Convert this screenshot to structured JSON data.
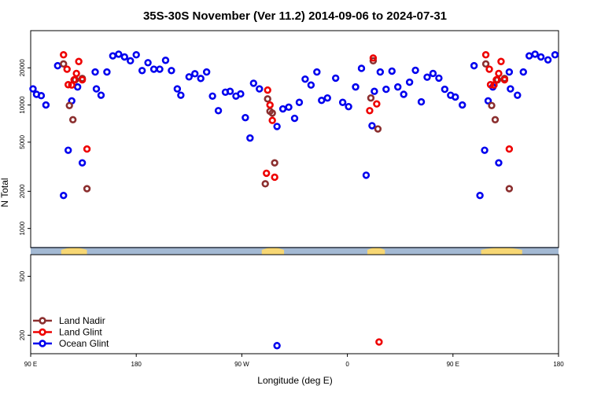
{
  "chart_data": {
    "type": "scatter",
    "title": "35S-30S November (Ver 11.2)   2014-09-06 to 2024-07-31",
    "xlabel": "Longitude (deg E)",
    "ylabel": "N Total",
    "x_scale": "longitude from 90 E through 180 to 180 E (wraps 450 deg)",
    "y_scale": "log",
    "xlim": [
      90,
      540
    ],
    "x_ticks": [
      {
        "value": 90,
        "label": "90 E"
      },
      {
        "value": 180,
        "label": "180"
      },
      {
        "value": 270,
        "label": "90 W"
      },
      {
        "value": 360,
        "label": "0"
      },
      {
        "value": 450,
        "label": "90 E"
      },
      {
        "value": 540,
        "label": "180"
      }
    ],
    "upper_panel": {
      "ylim": [
        700,
        40000
      ],
      "y_ticks": [
        1000,
        2000,
        5000,
        10000,
        20000
      ]
    },
    "lower_panel": {
      "ylim": [
        150,
        700
      ],
      "y_ticks": [
        200,
        500
      ]
    },
    "land_strip": {
      "ocean_color": "#a3b9d3",
      "land_color": "#f7d774",
      "land_spans": [
        [
          116,
          138
        ],
        [
          287,
          306
        ],
        [
          377,
          392
        ],
        [
          474,
          509
        ]
      ]
    },
    "legend": {
      "position": "bottom-left",
      "entries": [
        {
          "name": "Land Nadir",
          "color": "#8b2f2f"
        },
        {
          "name": "Land Glint",
          "color": "#ee0000"
        },
        {
          "name": "Ocean Glint",
          "color": "#0000ee"
        }
      ]
    },
    "series": [
      {
        "name": "Land Nadir",
        "color": "#8b2f2f",
        "points": [
          [
            118,
            21500
          ],
          [
            123,
            9900
          ],
          [
            126,
            7600
          ],
          [
            128,
            16000
          ],
          [
            134,
            16400
          ],
          [
            138,
            2100
          ],
          [
            290,
            2300
          ],
          [
            292,
            11200
          ],
          [
            294,
            8900
          ],
          [
            296,
            8600
          ],
          [
            298,
            3400
          ],
          [
            380,
            11400
          ],
          [
            382,
            22800
          ],
          [
            386,
            6400
          ],
          [
            478,
            21500
          ],
          [
            483,
            9900
          ],
          [
            486,
            7600
          ],
          [
            488,
            16000
          ],
          [
            494,
            16400
          ],
          [
            498,
            2100
          ]
        ]
      },
      {
        "name": "Land Glint",
        "color": "#ee0000",
        "points": [
          [
            118,
            25500
          ],
          [
            121,
            19500
          ],
          [
            122,
            14600
          ],
          [
            125,
            14500
          ],
          [
            127,
            16000
          ],
          [
            129,
            18000
          ],
          [
            131,
            22500
          ],
          [
            134,
            16000
          ],
          [
            138,
            4400
          ],
          [
            291,
            2800
          ],
          [
            292,
            13200
          ],
          [
            294,
            10000
          ],
          [
            296,
            7500
          ],
          [
            298,
            2600
          ],
          [
            379,
            9000
          ],
          [
            382,
            24000
          ],
          [
            385,
            10200
          ],
          [
            387,
            180
          ],
          [
            478,
            25500
          ],
          [
            481,
            19500
          ],
          [
            482,
            14600
          ],
          [
            485,
            14500
          ],
          [
            487,
            16000
          ],
          [
            489,
            18000
          ],
          [
            491,
            22500
          ],
          [
            494,
            16000
          ],
          [
            498,
            4400
          ]
        ]
      },
      {
        "name": "Ocean Glint",
        "color": "#0000ee",
        "points": [
          [
            92,
            13500
          ],
          [
            95,
            12200
          ],
          [
            99,
            11900
          ],
          [
            103,
            10000
          ],
          [
            113,
            20800
          ],
          [
            118,
            1850
          ],
          [
            122,
            4300
          ],
          [
            125,
            10800
          ],
          [
            130,
            14000
          ],
          [
            134,
            3400
          ],
          [
            145,
            18500
          ],
          [
            146,
            13500
          ],
          [
            150,
            12000
          ],
          [
            155,
            18500
          ],
          [
            160,
            25000
          ],
          [
            165,
            25800
          ],
          [
            170,
            24500
          ],
          [
            175,
            22800
          ],
          [
            180,
            25500
          ],
          [
            185,
            19000
          ],
          [
            190,
            22000
          ],
          [
            195,
            19500
          ],
          [
            200,
            19500
          ],
          [
            205,
            23000
          ],
          [
            210,
            19000
          ],
          [
            215,
            13500
          ],
          [
            218,
            12000
          ],
          [
            225,
            16900
          ],
          [
            230,
            17900
          ],
          [
            235,
            16400
          ],
          [
            240,
            18500
          ],
          [
            245,
            11800
          ],
          [
            250,
            9000
          ],
          [
            256,
            12700
          ],
          [
            260,
            12900
          ],
          [
            265,
            11800
          ],
          [
            269,
            12300
          ],
          [
            273,
            7900
          ],
          [
            277,
            5400
          ],
          [
            280,
            15000
          ],
          [
            285,
            13500
          ],
          [
            300,
            6700
          ],
          [
            305,
            9300
          ],
          [
            310,
            9600
          ],
          [
            315,
            7800
          ],
          [
            319,
            10500
          ],
          [
            324,
            16200
          ],
          [
            329,
            14500
          ],
          [
            334,
            18500
          ],
          [
            338,
            10900
          ],
          [
            343,
            11400
          ],
          [
            350,
            16500
          ],
          [
            356,
            10500
          ],
          [
            361,
            9700
          ],
          [
            367,
            14000
          ],
          [
            372,
            19800
          ],
          [
            376,
            2700
          ],
          [
            381,
            6800
          ],
          [
            383,
            12900
          ],
          [
            388,
            18500
          ],
          [
            393,
            13400
          ],
          [
            398,
            18800
          ],
          [
            403,
            14000
          ],
          [
            408,
            12200
          ],
          [
            413,
            15300
          ],
          [
            418,
            19100
          ],
          [
            423,
            10600
          ],
          [
            428,
            16800
          ],
          [
            433,
            18000
          ],
          [
            438,
            16500
          ],
          [
            443,
            13400
          ],
          [
            448,
            12000
          ],
          [
            452,
            11600
          ],
          [
            458,
            10000
          ],
          [
            468,
            20800
          ],
          [
            473,
            1850
          ],
          [
            477,
            4300
          ],
          [
            480,
            10800
          ],
          [
            484,
            14000
          ],
          [
            489,
            3400
          ],
          [
            498,
            18500
          ],
          [
            499,
            13500
          ],
          [
            505,
            12000
          ],
          [
            510,
            18500
          ],
          [
            515,
            25000
          ],
          [
            520,
            25800
          ],
          [
            525,
            24500
          ],
          [
            531,
            23200
          ],
          [
            537,
            25500
          ],
          [
            300,
            170
          ]
        ]
      }
    ]
  }
}
